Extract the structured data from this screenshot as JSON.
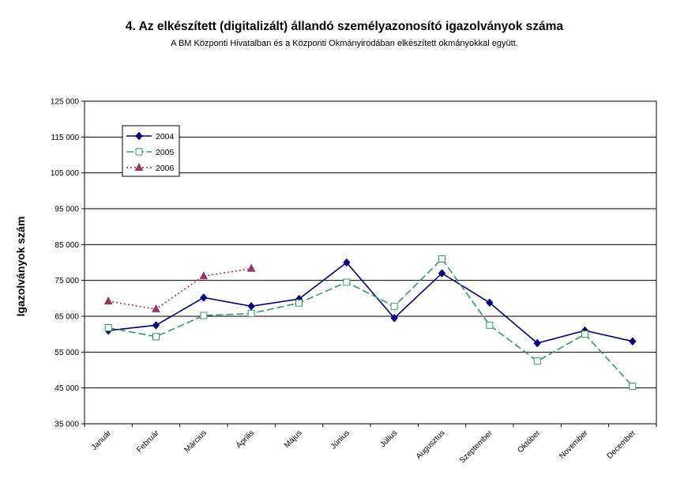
{
  "chart_data": {
    "type": "line",
    "title": "4. Az elkészített (digitalizált) állandó személyazonosító igazolványok száma",
    "subtitle": "A BM Központi Hivatalban és a Központi Okmányirodában elkészített okmányokkal együtt.",
    "xlabel": "",
    "ylabel": "Igazolványok szám",
    "ylim": [
      35000,
      125000
    ],
    "yticks": [
      35000,
      45000,
      55000,
      65000,
      75000,
      85000,
      95000,
      105000,
      115000,
      125000
    ],
    "ytick_labels": [
      "35 000",
      "45 000",
      "55 000",
      "65 000",
      "75 000",
      "85 000",
      "95 000",
      "105 000",
      "115 000",
      "125 000"
    ],
    "grid": true,
    "legend_position": "top-left",
    "categories": [
      "Január",
      "Február",
      "Március",
      "Április",
      "Május",
      "Június",
      "Július",
      "Augusztus",
      "Szeptember",
      "Október",
      "November",
      "December"
    ],
    "series": [
      {
        "name": "2004",
        "color": "#000080",
        "marker": "diamond",
        "dash": "solid",
        "values": [
          61000,
          62500,
          70200,
          67800,
          69800,
          80000,
          64500,
          77000,
          68800,
          57500,
          61000,
          58000
        ]
      },
      {
        "name": "2005",
        "color": "#339966",
        "marker": "square-open",
        "dash": "dashed",
        "values": [
          61800,
          59300,
          65200,
          65800,
          68700,
          74500,
          67800,
          81000,
          62500,
          52500,
          60000,
          45500
        ]
      },
      {
        "name": "2006",
        "color": "#993366",
        "marker": "triangle",
        "dash": "dotted",
        "values": [
          69200,
          67000,
          76200,
          78300,
          null,
          null,
          null,
          null,
          null,
          null,
          null,
          null
        ]
      }
    ]
  }
}
